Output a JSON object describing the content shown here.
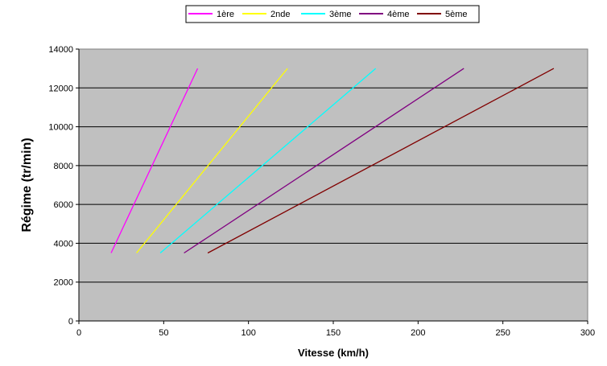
{
  "chart_data": {
    "type": "line",
    "title": "",
    "xlabel": "Vitesse (km/h)",
    "ylabel": "Régime (tr/min)",
    "xlim": [
      0,
      300
    ],
    "ylim": [
      0,
      14000
    ],
    "xticks": [
      "0",
      "50",
      "100",
      "150",
      "200",
      "250",
      "300"
    ],
    "yticks": [
      "0",
      "2000",
      "4000",
      "6000",
      "8000",
      "10000",
      "12000",
      "14000"
    ],
    "grid": "horizontal",
    "plot_background": "#c0c0c0",
    "legend_position": "top-center",
    "series": [
      {
        "name": "1ère",
        "color": "#ff00ff",
        "x": [
          19,
          70
        ],
        "y": [
          3500,
          13000
        ]
      },
      {
        "name": "2nde",
        "color": "#ffff00",
        "x": [
          34,
          123
        ],
        "y": [
          3500,
          13000
        ]
      },
      {
        "name": "3ème",
        "color": "#00ffff",
        "x": [
          48,
          175
        ],
        "y": [
          3500,
          13000
        ]
      },
      {
        "name": "4ème",
        "color": "#800080",
        "x": [
          62,
          227
        ],
        "y": [
          3500,
          13000
        ]
      },
      {
        "name": "5ème",
        "color": "#800000",
        "x": [
          76,
          280
        ],
        "y": [
          3500,
          13000
        ]
      }
    ]
  }
}
